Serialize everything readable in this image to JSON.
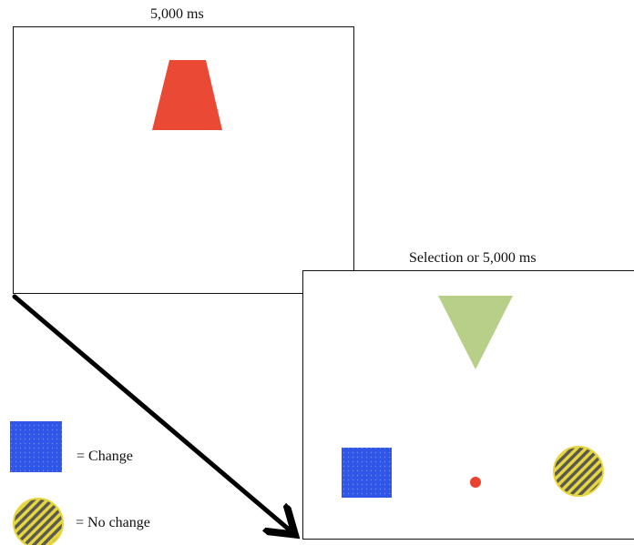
{
  "study_screen": {
    "duration_label": "5,000 ms",
    "stimulus_shape": "trapezoid",
    "stimulus_color": "#ea4a35"
  },
  "test_screen": {
    "duration_label": "Selection or 5,000 ms",
    "top_shape": "inverted-triangle",
    "top_shape_color": "#b7cf86",
    "left_option": "blue-dotted-square",
    "fixation_dot_color": "#e8432f",
    "right_option": "yellow-hatched-circle"
  },
  "legend": {
    "change_label": "= Change",
    "no_change_label": "= No change"
  },
  "colors": {
    "blue_square": "#2f56e6",
    "hatch_yellow": "#e6d640",
    "hatch_stripe": "#5a5a52",
    "arrow": "#000000",
    "frame": "#111111"
  }
}
